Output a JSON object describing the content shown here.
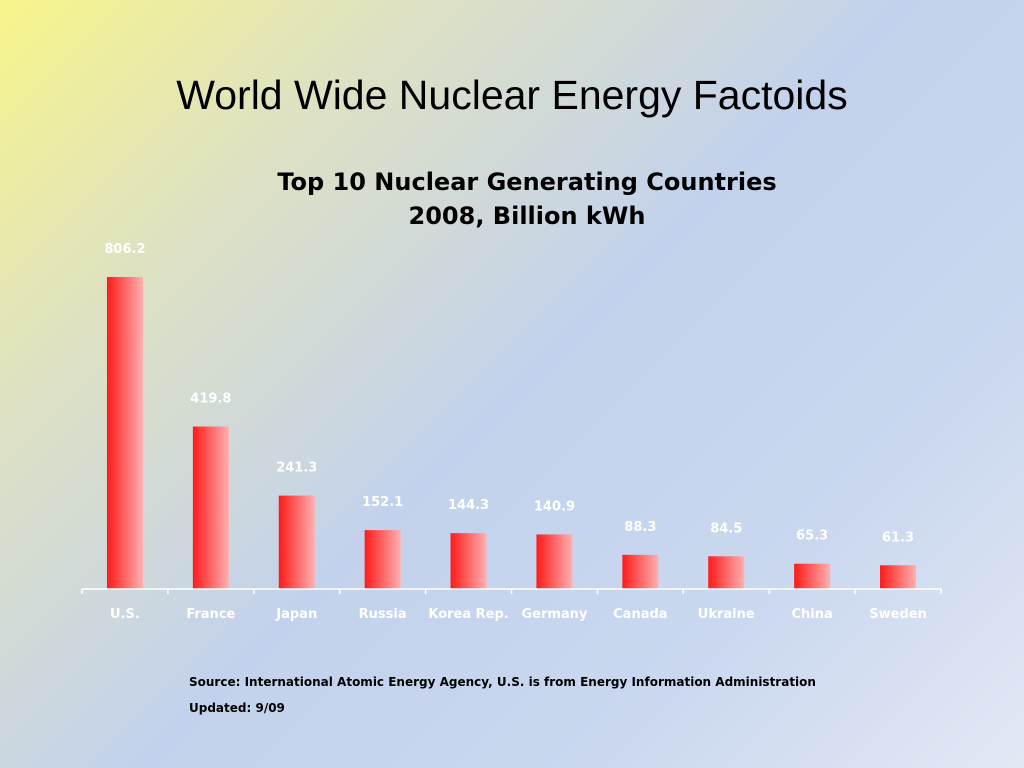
{
  "slide": {
    "title": "World Wide Nuclear Energy Factoids"
  },
  "chart_data": {
    "type": "bar",
    "title_line1": "Top 10 Nuclear Generating Countries",
    "title_line2": "2008, Billion kWh",
    "categories": [
      "U.S.",
      "France",
      "Japan",
      "Russia",
      "Korea Rep.",
      "Germany",
      "Canada",
      "Ukraine",
      "China",
      "Sweden"
    ],
    "values": [
      806.2,
      419.8,
      241.3,
      152.1,
      144.3,
      140.9,
      88.3,
      84.5,
      65.3,
      61.3
    ],
    "value_labels": [
      "806.2",
      "419.8",
      "241.3",
      "152.1",
      "144.3",
      "140.9",
      "88.3",
      "84.5",
      "65.3",
      "61.3"
    ],
    "ylim": [
      0,
      806.2
    ],
    "grid": false,
    "bar_color_start": "#ff1a1a",
    "bar_color_end": "#ffb0b0",
    "label_color": "#ffffff"
  },
  "footer": {
    "source": "Source: International Atomic Energy Agency, U.S. is from Energy Information Administration",
    "updated": "Updated: 9/09"
  }
}
